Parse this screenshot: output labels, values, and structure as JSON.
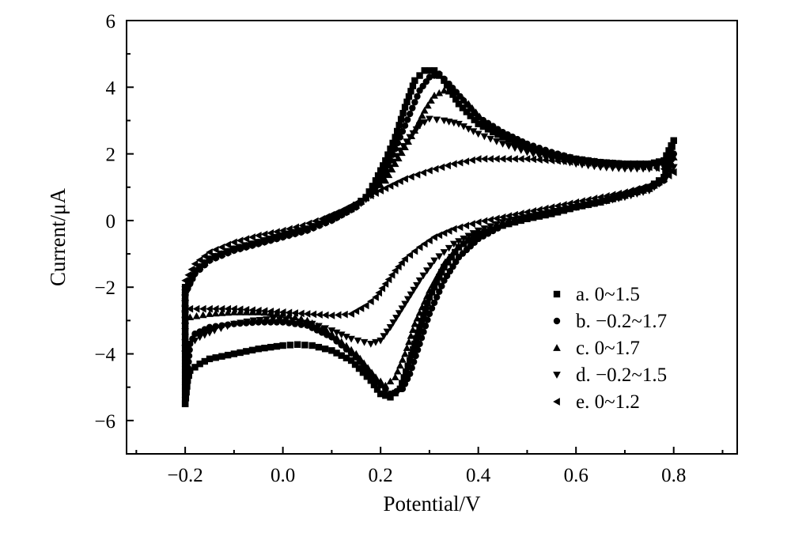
{
  "chart_data": {
    "type": "scatter",
    "title": "",
    "xlabel": "Potential/V",
    "ylabel": "Current/μA",
    "xlim": [
      -0.32,
      0.93
    ],
    "ylim": [
      -7,
      6
    ],
    "x_ticks": [
      -0.2,
      0.0,
      0.2,
      0.4,
      0.6,
      0.8
    ],
    "x_tick_labels": [
      "−0.2",
      "0.0",
      "0.2",
      "0.4",
      "0.6",
      "0.8"
    ],
    "y_ticks": [
      -6,
      -4,
      -2,
      0,
      2,
      4,
      6
    ],
    "y_tick_labels": [
      "−6",
      "−4",
      "−2",
      "0",
      "2",
      "4",
      "6"
    ],
    "grid": false,
    "legend_position": "lower-right",
    "series": [
      {
        "name": "a. 0~1.5",
        "marker": "square",
        "color": "#000000",
        "forward": [
          [
            -0.2,
            -5.5
          ],
          [
            -0.195,
            -4.8
          ],
          [
            -0.19,
            -4.5
          ],
          [
            -0.17,
            -4.3
          ],
          [
            -0.15,
            -4.15
          ],
          [
            -0.1,
            -4.0
          ],
          [
            -0.05,
            -3.85
          ],
          [
            0.0,
            -3.75
          ],
          [
            0.03,
            -3.72
          ],
          [
            0.06,
            -3.75
          ],
          [
            0.1,
            -3.9
          ],
          [
            0.14,
            -4.2
          ],
          [
            0.18,
            -4.8
          ],
          [
            0.2,
            -5.2
          ],
          [
            0.22,
            -5.3
          ],
          [
            0.24,
            -5.05
          ],
          [
            0.26,
            -4.2
          ],
          [
            0.28,
            -3.2
          ],
          [
            0.3,
            -2.3
          ],
          [
            0.33,
            -1.4
          ],
          [
            0.36,
            -0.8
          ],
          [
            0.4,
            -0.4
          ],
          [
            0.45,
            -0.15
          ],
          [
            0.5,
            0.05
          ],
          [
            0.55,
            0.2
          ],
          [
            0.6,
            0.4
          ],
          [
            0.65,
            0.55
          ],
          [
            0.7,
            0.75
          ],
          [
            0.75,
            1.0
          ],
          [
            0.78,
            1.3
          ],
          [
            0.8,
            2.4
          ]
        ],
        "reverse": [
          [
            0.8,
            2.4
          ],
          [
            0.78,
            1.8
          ],
          [
            0.75,
            1.7
          ],
          [
            0.7,
            1.7
          ],
          [
            0.65,
            1.75
          ],
          [
            0.6,
            1.85
          ],
          [
            0.55,
            2.0
          ],
          [
            0.5,
            2.2
          ],
          [
            0.45,
            2.5
          ],
          [
            0.4,
            2.9
          ],
          [
            0.36,
            3.5
          ],
          [
            0.33,
            4.2
          ],
          [
            0.31,
            4.5
          ],
          [
            0.29,
            4.5
          ],
          [
            0.27,
            4.2
          ],
          [
            0.25,
            3.4
          ],
          [
            0.23,
            2.5
          ],
          [
            0.21,
            1.8
          ],
          [
            0.19,
            1.2
          ],
          [
            0.17,
            0.7
          ],
          [
            0.14,
            0.35
          ],
          [
            0.1,
            0.05
          ],
          [
            0.05,
            -0.25
          ],
          [
            0.0,
            -0.45
          ],
          [
            -0.05,
            -0.65
          ],
          [
            -0.1,
            -0.85
          ],
          [
            -0.15,
            -1.15
          ],
          [
            -0.18,
            -1.5
          ],
          [
            -0.2,
            -2.0
          ],
          [
            -0.2,
            -4.0
          ],
          [
            -0.2,
            -5.5
          ]
        ]
      },
      {
        "name": "b. −0.2~1.7",
        "marker": "circle",
        "color": "#000000",
        "forward": [
          [
            -0.2,
            -5.3
          ],
          [
            -0.195,
            -4.6
          ],
          [
            -0.19,
            -3.7
          ],
          [
            -0.18,
            -3.4
          ],
          [
            -0.15,
            -3.2
          ],
          [
            -0.1,
            -3.1
          ],
          [
            -0.05,
            -3.05
          ],
          [
            0.0,
            -3.05
          ],
          [
            0.05,
            -3.15
          ],
          [
            0.1,
            -3.5
          ],
          [
            0.15,
            -4.1
          ],
          [
            0.19,
            -4.8
          ],
          [
            0.22,
            -5.2
          ],
          [
            0.245,
            -5.05
          ],
          [
            0.26,
            -4.6
          ],
          [
            0.28,
            -3.7
          ],
          [
            0.3,
            -2.8
          ],
          [
            0.33,
            -1.8
          ],
          [
            0.36,
            -1.1
          ],
          [
            0.4,
            -0.55
          ],
          [
            0.45,
            -0.15
          ],
          [
            0.5,
            0.05
          ],
          [
            0.55,
            0.25
          ],
          [
            0.6,
            0.4
          ],
          [
            0.65,
            0.55
          ],
          [
            0.7,
            0.75
          ],
          [
            0.75,
            0.95
          ],
          [
            0.78,
            1.2
          ],
          [
            0.8,
            2.0
          ]
        ],
        "reverse": [
          [
            0.8,
            2.0
          ],
          [
            0.78,
            1.75
          ],
          [
            0.75,
            1.7
          ],
          [
            0.7,
            1.7
          ],
          [
            0.65,
            1.75
          ],
          [
            0.6,
            1.85
          ],
          [
            0.55,
            2.05
          ],
          [
            0.5,
            2.3
          ],
          [
            0.45,
            2.65
          ],
          [
            0.4,
            3.1
          ],
          [
            0.37,
            3.6
          ],
          [
            0.34,
            4.1
          ],
          [
            0.32,
            4.4
          ],
          [
            0.3,
            4.3
          ],
          [
            0.28,
            3.9
          ],
          [
            0.26,
            3.2
          ],
          [
            0.24,
            2.5
          ],
          [
            0.22,
            1.8
          ],
          [
            0.2,
            1.25
          ],
          [
            0.18,
            0.8
          ],
          [
            0.15,
            0.4
          ],
          [
            0.1,
            0.0
          ],
          [
            0.05,
            -0.3
          ],
          [
            0.0,
            -0.5
          ],
          [
            -0.05,
            -0.7
          ],
          [
            -0.1,
            -0.9
          ],
          [
            -0.15,
            -1.2
          ],
          [
            -0.18,
            -1.6
          ],
          [
            -0.2,
            -2.2
          ],
          [
            -0.2,
            -4.0
          ],
          [
            -0.2,
            -5.3
          ]
        ]
      },
      {
        "name": "c. 0~1.7",
        "marker": "triangle-up",
        "color": "#000000",
        "forward": [
          [
            -0.2,
            -3.0
          ],
          [
            -0.19,
            -2.9
          ],
          [
            -0.15,
            -2.8
          ],
          [
            -0.1,
            -2.75
          ],
          [
            -0.05,
            -2.75
          ],
          [
            0.0,
            -2.8
          ],
          [
            0.05,
            -3.0
          ],
          [
            0.1,
            -3.4
          ],
          [
            0.15,
            -4.0
          ],
          [
            0.19,
            -4.7
          ],
          [
            0.21,
            -4.95
          ],
          [
            0.23,
            -4.7
          ],
          [
            0.25,
            -4.0
          ],
          [
            0.27,
            -3.1
          ],
          [
            0.3,
            -2.1
          ],
          [
            0.33,
            -1.3
          ],
          [
            0.36,
            -0.8
          ],
          [
            0.4,
            -0.4
          ],
          [
            0.45,
            -0.1
          ],
          [
            0.5,
            0.1
          ],
          [
            0.55,
            0.25
          ],
          [
            0.6,
            0.4
          ],
          [
            0.65,
            0.55
          ],
          [
            0.7,
            0.75
          ],
          [
            0.75,
            0.95
          ],
          [
            0.78,
            1.25
          ],
          [
            0.8,
            1.9
          ]
        ],
        "reverse": [
          [
            0.8,
            1.9
          ],
          [
            0.78,
            1.75
          ],
          [
            0.75,
            1.7
          ],
          [
            0.7,
            1.7
          ],
          [
            0.65,
            1.75
          ],
          [
            0.6,
            1.85
          ],
          [
            0.55,
            2.0
          ],
          [
            0.5,
            2.25
          ],
          [
            0.45,
            2.6
          ],
          [
            0.41,
            3.0
          ],
          [
            0.38,
            3.5
          ],
          [
            0.35,
            3.85
          ],
          [
            0.33,
            3.9
          ],
          [
            0.31,
            3.75
          ],
          [
            0.29,
            3.3
          ],
          [
            0.27,
            2.7
          ],
          [
            0.25,
            2.2
          ],
          [
            0.23,
            1.7
          ],
          [
            0.21,
            1.2
          ],
          [
            0.18,
            0.8
          ],
          [
            0.15,
            0.45
          ],
          [
            0.1,
            0.05
          ],
          [
            0.05,
            -0.25
          ],
          [
            0.0,
            -0.45
          ],
          [
            -0.05,
            -0.65
          ],
          [
            -0.1,
            -0.85
          ],
          [
            -0.15,
            -1.15
          ],
          [
            -0.18,
            -1.5
          ],
          [
            -0.2,
            -2.0
          ],
          [
            -0.2,
            -3.0
          ]
        ]
      },
      {
        "name": "d. −0.2~1.5",
        "marker": "triangle-down",
        "color": "#000000",
        "forward": [
          [
            -0.2,
            -4.0
          ],
          [
            -0.19,
            -3.7
          ],
          [
            -0.17,
            -3.5
          ],
          [
            -0.14,
            -3.3
          ],
          [
            -0.1,
            -3.1
          ],
          [
            -0.06,
            -3.0
          ],
          [
            -0.02,
            -2.95
          ],
          [
            0.02,
            -3.0
          ],
          [
            0.06,
            -3.1
          ],
          [
            0.1,
            -3.3
          ],
          [
            0.14,
            -3.55
          ],
          [
            0.18,
            -3.7
          ],
          [
            0.2,
            -3.6
          ],
          [
            0.22,
            -3.2
          ],
          [
            0.25,
            -2.5
          ],
          [
            0.28,
            -1.8
          ],
          [
            0.31,
            -1.2
          ],
          [
            0.35,
            -0.7
          ],
          [
            0.4,
            -0.3
          ],
          [
            0.45,
            -0.05
          ],
          [
            0.5,
            0.1
          ],
          [
            0.55,
            0.25
          ],
          [
            0.6,
            0.4
          ],
          [
            0.65,
            0.55
          ],
          [
            0.7,
            0.7
          ],
          [
            0.75,
            0.9
          ],
          [
            0.78,
            1.2
          ],
          [
            0.8,
            1.6
          ]
        ],
        "reverse": [
          [
            0.8,
            1.6
          ],
          [
            0.78,
            1.6
          ],
          [
            0.75,
            1.55
          ],
          [
            0.7,
            1.55
          ],
          [
            0.65,
            1.6
          ],
          [
            0.6,
            1.7
          ],
          [
            0.55,
            1.85
          ],
          [
            0.5,
            2.05
          ],
          [
            0.45,
            2.3
          ],
          [
            0.4,
            2.6
          ],
          [
            0.36,
            2.9
          ],
          [
            0.33,
            3.0
          ],
          [
            0.3,
            3.05
          ],
          [
            0.28,
            2.85
          ],
          [
            0.26,
            2.5
          ],
          [
            0.24,
            2.1
          ],
          [
            0.22,
            1.6
          ],
          [
            0.2,
            1.15
          ],
          [
            0.18,
            0.75
          ],
          [
            0.15,
            0.4
          ],
          [
            0.1,
            0.0
          ],
          [
            0.05,
            -0.3
          ],
          [
            0.0,
            -0.5
          ],
          [
            -0.05,
            -0.7
          ],
          [
            -0.1,
            -0.9
          ],
          [
            -0.15,
            -1.2
          ],
          [
            -0.18,
            -1.6
          ],
          [
            -0.2,
            -2.3
          ],
          [
            -0.2,
            -4.0
          ]
        ]
      },
      {
        "name": "e. 0~1.2",
        "marker": "triangle-left",
        "color": "#000000",
        "forward": [
          [
            -0.2,
            -2.7
          ],
          [
            -0.19,
            -2.65
          ],
          [
            -0.15,
            -2.65
          ],
          [
            -0.1,
            -2.65
          ],
          [
            -0.05,
            -2.7
          ],
          [
            0.0,
            -2.75
          ],
          [
            0.05,
            -2.8
          ],
          [
            0.1,
            -2.85
          ],
          [
            0.14,
            -2.8
          ],
          [
            0.17,
            -2.55
          ],
          [
            0.19,
            -2.3
          ],
          [
            0.21,
            -1.9
          ],
          [
            0.23,
            -1.5
          ],
          [
            0.25,
            -1.15
          ],
          [
            0.28,
            -0.8
          ],
          [
            0.31,
            -0.5
          ],
          [
            0.35,
            -0.25
          ],
          [
            0.4,
            -0.05
          ],
          [
            0.45,
            0.1
          ],
          [
            0.5,
            0.25
          ],
          [
            0.55,
            0.4
          ],
          [
            0.6,
            0.55
          ],
          [
            0.65,
            0.7
          ],
          [
            0.7,
            0.85
          ],
          [
            0.75,
            1.05
          ],
          [
            0.78,
            1.25
          ],
          [
            0.8,
            1.45
          ]
        ],
        "reverse": [
          [
            0.8,
            1.45
          ],
          [
            0.78,
            1.55
          ],
          [
            0.75,
            1.6
          ],
          [
            0.7,
            1.65
          ],
          [
            0.65,
            1.7
          ],
          [
            0.6,
            1.75
          ],
          [
            0.55,
            1.8
          ],
          [
            0.5,
            1.85
          ],
          [
            0.45,
            1.85
          ],
          [
            0.4,
            1.85
          ],
          [
            0.35,
            1.7
          ],
          [
            0.3,
            1.5
          ],
          [
            0.25,
            1.25
          ],
          [
            0.2,
            0.9
          ],
          [
            0.16,
            0.6
          ],
          [
            0.12,
            0.3
          ],
          [
            0.08,
            0.05
          ],
          [
            0.04,
            -0.15
          ],
          [
            0.0,
            -0.3
          ],
          [
            -0.05,
            -0.45
          ],
          [
            -0.1,
            -0.65
          ],
          [
            -0.15,
            -0.95
          ],
          [
            -0.18,
            -1.3
          ],
          [
            -0.2,
            -1.8
          ],
          [
            -0.2,
            -2.7
          ]
        ]
      }
    ]
  }
}
